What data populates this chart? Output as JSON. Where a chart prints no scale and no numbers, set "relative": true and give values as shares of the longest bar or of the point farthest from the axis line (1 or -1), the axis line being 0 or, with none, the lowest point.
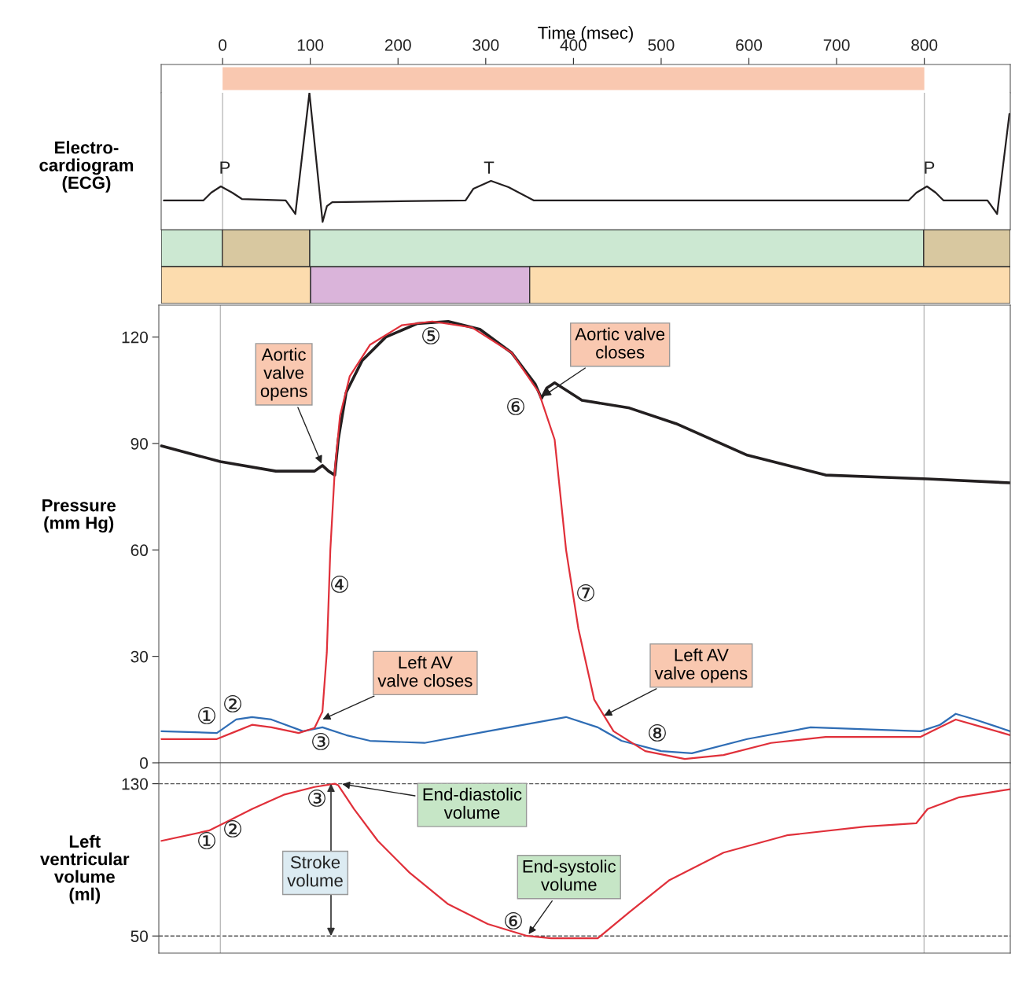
{
  "chart_data": [
    {
      "type": "bar",
      "orientation": "horizontal",
      "xlabel": "Time (msec)",
      "categories": [
        null
      ],
      "values": [
        800
      ],
      "base": [
        0
      ],
      "color": "#f9c8b0",
      "xlim": [
        -70,
        898
      ],
      "xticks": [
        0,
        100,
        200,
        300,
        400,
        500,
        600,
        700,
        800
      ],
      "tick_labels": "x"
    },
    {
      "type": "line",
      "relative": true,
      "ylabel": "Electro-\ncardiogram\n(ECG)",
      "xlim": [
        -70,
        898
      ],
      "tick_labels": false,
      "series": [
        {
          "color": "#231f20",
          "x": [
            -67,
            -22,
            -13,
            -2,
            11,
            22,
            72,
            83,
            99,
            114,
            119,
            125,
            277,
            286,
            306,
            326,
            355,
            782,
            791,
            803,
            813,
            822,
            872,
            883,
            897
          ],
          "values": [
            0.213,
            0.213,
            0.27,
            0.316,
            0.27,
            0.224,
            0.213,
            0.115,
            1,
            0.057,
            0.172,
            0.201,
            0.213,
            0.299,
            0.356,
            0.31,
            0.213,
            0.213,
            0.27,
            0.316,
            0.27,
            0.213,
            0.213,
            0.115,
            0.845
          ]
        }
      ],
      "ref_lines": [
        {
          "axis": "x",
          "value": 0,
          "color": "#bbbbbb"
        },
        {
          "axis": "x",
          "value": 800,
          "color": "#bbbbbb"
        }
      ],
      "annotations": [
        "P",
        "T",
        "P"
      ]
    },
    {
      "type": "bar",
      "orientation": "horizontal",
      "stacked": true,
      "relative": true,
      "categories": [
        null,
        null
      ],
      "tick_labels": false,
      "series": [
        {
          "values": [
            0.072,
            0.176
          ],
          "colors": [
            "#cce8d2",
            "#fcdcae"
          ]
        },
        {
          "values": [
            0.103,
            0.258
          ],
          "colors": [
            "#d8c8a0",
            "#dab4da"
          ]
        },
        {
          "values": [
            0.723,
            0.566
          ],
          "colors": [
            "#cce8d2",
            "#fcdcae"
          ]
        },
        {
          "values": [
            0.102,
            null
          ],
          "colors": [
            "#d8c8a0",
            null
          ]
        }
      ]
    },
    {
      "type": "line",
      "ylabel": "Pressure\n(mm Hg)",
      "xlim": [
        -70,
        898
      ],
      "ylim": [
        0,
        129
      ],
      "yticks": [
        0,
        30,
        60,
        90,
        120
      ],
      "tick_labels": "y",
      "series": [
        {
          "color": "#231f20",
          "x": [
            -67,
            0,
            63,
            107,
            116,
            123,
            130,
            134,
            143,
            161,
            188,
            224,
            259,
            295,
            331,
            358,
            365,
            371,
            380,
            411,
            465,
            518,
            599,
            688,
            804,
            898
          ],
          "values": [
            89.3,
            84.9,
            82.2,
            82.2,
            83.8,
            82.2,
            81.1,
            91.1,
            104.4,
            113.3,
            120,
            123.8,
            124.4,
            122.2,
            115.6,
            106.7,
            102.7,
            105.6,
            107.1,
            102.2,
            100,
            95.6,
            86.7,
            81.1,
            80,
            78.9
          ]
        },
        {
          "color": "#2f6db5",
          "x": [
            -67,
            -4,
            18,
            36,
            58,
            94,
            116,
            143,
            170,
            232,
            304,
            393,
            429,
            456,
            501,
            536,
            599,
            671,
            796,
            818,
            836,
            858,
            898
          ],
          "values": [
            8.9,
            8.4,
            12.2,
            12.9,
            12.2,
            8.9,
            10,
            7.8,
            6.2,
            5.6,
            8.9,
            12.9,
            10,
            6.2,
            3.3,
            2.7,
            6.7,
            10,
            8.9,
            10.7,
            13.8,
            12.2,
            8.9
          ]
        },
        {
          "color": "#e0303a",
          "x": [
            -67,
            -4,
            18,
            36,
            58,
            89,
            107,
            116,
            121,
            125,
            130,
            136,
            147,
            170,
            206,
            241,
            286,
            331,
            362,
            380,
            393,
            407,
            425,
            447,
            483,
            528,
            572,
            626,
            688,
            796,
            809,
            836,
            867,
            898
          ],
          "values": [
            6.7,
            6.7,
            8.9,
            10.7,
            10,
            8.4,
            9.8,
            14.4,
            31.1,
            60,
            82.2,
            97.8,
            108.9,
            117.8,
            123.3,
            124.4,
            122.7,
            115.6,
            104.4,
            91.1,
            60,
            37.8,
            17.8,
            8.9,
            3.3,
            1.1,
            2.2,
            5.6,
            7.3,
            7.3,
            8.9,
            12.2,
            10,
            7.8
          ]
        }
      ],
      "ref_lines": [
        {
          "axis": "x",
          "value": 0,
          "color": "#bbbbbb"
        },
        {
          "axis": "x",
          "value": 800,
          "color": "#bbbbbb"
        }
      ],
      "annotations": [
        {
          "text": "Aortic\nvalve\nopens",
          "x": 116,
          "y": 83.8
        },
        {
          "text": "Aortic valve\ncloses",
          "x": 365,
          "y": 103
        },
        {
          "text": "Left AV\nvalve closes",
          "x": 114,
          "y": 12
        },
        {
          "text": "Left AV\nvalve opens",
          "x": 434,
          "y": 13
        },
        "①",
        "②",
        "③",
        "④",
        "⑤",
        "⑥",
        "⑦",
        "⑧"
      ]
    },
    {
      "type": "line",
      "ylabel": "Left\nventricular\nvolume\n(ml)",
      "xlim": [
        -70,
        898
      ],
      "ylim": [
        41,
        141
      ],
      "yticks": [
        50,
        130
      ],
      "tick_labels": "y",
      "series": [
        {
          "color": "#e0303a",
          "x": [
            -67,
            -13,
            9,
            36,
            72,
            107,
            130,
            134,
            152,
            179,
            215,
            259,
            304,
            349,
            376,
            429,
            465,
            510,
            572,
            644,
            733,
            791,
            804,
            840,
            898
          ],
          "values": [
            100,
            105.4,
            110.4,
            116.7,
            124.2,
            128.3,
            130,
            129.2,
            116.7,
            100,
            83.3,
            66.7,
            56.3,
            50,
            48.8,
            48.8,
            62.5,
            79.2,
            93.8,
            102.9,
            107.5,
            109.2,
            116.7,
            122.9,
            127.1
          ]
        }
      ],
      "ref_lines": [
        {
          "axis": "y",
          "value": 130,
          "color": "#555555",
          "line_style": "dashed"
        },
        {
          "axis": "y",
          "value": 50,
          "color": "#555555",
          "line_style": "dashed"
        },
        {
          "axis": "x",
          "value": 0,
          "color": "#bbbbbb"
        },
        {
          "axis": "x",
          "value": 800,
          "color": "#bbbbbb"
        }
      ],
      "annotations": [
        {
          "text": "End-diastolic\nvolume",
          "x": 136,
          "y": 130
        },
        "Stroke\nvolume",
        {
          "text": "End-systolic\nvolume",
          "x": 349,
          "y": 50
        },
        "①",
        "②",
        "③",
        "⑥"
      ]
    }
  ]
}
